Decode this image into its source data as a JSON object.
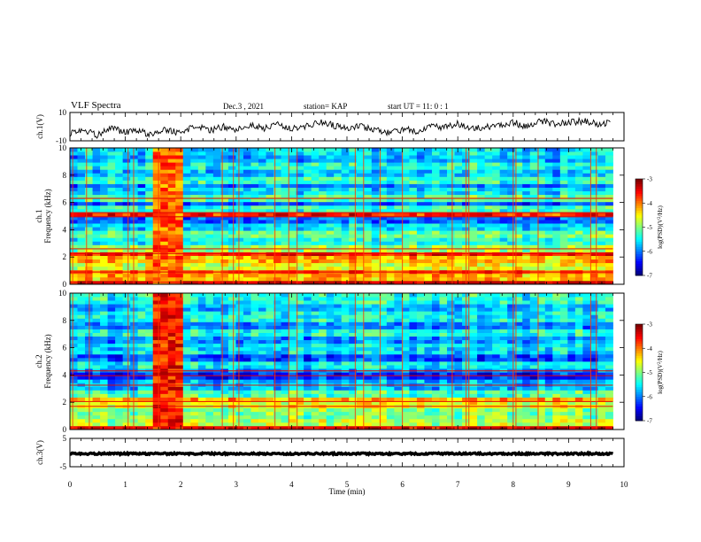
{
  "header": {
    "title": "VLF Spectra",
    "date": "Dec.3 , 2021",
    "station": "station= KAP",
    "start": "start UT = 11: 0 : 1"
  },
  "chart_data": [
    {
      "type": "line",
      "name": "waveform-ch1",
      "ylabel": "ch.1(V)",
      "ylim": [
        -10,
        10
      ],
      "yticks": [
        -10,
        10
      ],
      "xlim": [
        0,
        10
      ],
      "trace_x": [
        0,
        0.25,
        0.5,
        0.75,
        1,
        1.25,
        1.5,
        1.75,
        2,
        2.25,
        2.5,
        2.75,
        3,
        3.25,
        3.5,
        3.75,
        4,
        4.25,
        4.5,
        4.75,
        5,
        5.25,
        5.5,
        5.75,
        6,
        6.25,
        6.5,
        6.75,
        7,
        7.25,
        7.5,
        7.75,
        8,
        8.25,
        8.5,
        8.75,
        9,
        9.25,
        9.5,
        9.75
      ],
      "trace_y": [
        -5,
        -2,
        -6,
        -1,
        -4,
        -3,
        -6,
        -2,
        -5,
        1,
        -3,
        0,
        -2,
        1,
        -1,
        2,
        -1,
        0,
        3,
        1,
        -1,
        0,
        -2,
        -4,
        -2,
        -3,
        0,
        -1,
        2,
        -2,
        0,
        1,
        3,
        0,
        4,
        2,
        3,
        4,
        2,
        3
      ]
    },
    {
      "type": "heatmap",
      "name": "spectrogram-ch1",
      "ylabel_line1": "ch.1",
      "ylabel_line2": "Frequency (kHz)",
      "ylim": [
        0,
        10
      ],
      "yticks": [
        0,
        2,
        4,
        6,
        8,
        10
      ],
      "xlim": [
        0,
        9.8
      ],
      "colorbar": {
        "label": "log(PSD)(V^2/Hz)",
        "range": [
          -7,
          -3
        ],
        "ticks": [
          -7,
          -6,
          -5,
          -4,
          -3
        ]
      },
      "bands": [
        {
          "lo": 0.0,
          "hi": 0.3,
          "v": -3.2
        },
        {
          "lo": 0.3,
          "hi": 0.8,
          "v": -4.2
        },
        {
          "lo": 0.8,
          "hi": 1.0,
          "v": -3.8
        },
        {
          "lo": 1.0,
          "hi": 1.6,
          "v": -4.6
        },
        {
          "lo": 1.6,
          "hi": 2.1,
          "v": -4.2
        },
        {
          "lo": 2.1,
          "hi": 2.4,
          "v": -3.6
        },
        {
          "lo": 2.4,
          "hi": 3.0,
          "v": -4.9
        },
        {
          "lo": 3.0,
          "hi": 3.3,
          "v": -5.4
        },
        {
          "lo": 3.3,
          "hi": 4.0,
          "v": -5.1
        },
        {
          "lo": 4.0,
          "hi": 4.6,
          "v": -5.6
        },
        {
          "lo": 4.6,
          "hi": 4.9,
          "v": -6.1
        },
        {
          "lo": 4.9,
          "hi": 5.3,
          "v": -3.6
        },
        {
          "lo": 5.3,
          "hi": 5.7,
          "v": -5.3
        },
        {
          "lo": 5.7,
          "hi": 6.0,
          "v": -6.2
        },
        {
          "lo": 6.0,
          "hi": 6.5,
          "v": -5.2
        },
        {
          "lo": 6.5,
          "hi": 7.0,
          "v": -5.6
        },
        {
          "lo": 7.0,
          "hi": 7.4,
          "v": -6.0
        },
        {
          "lo": 7.4,
          "hi": 8.0,
          "v": -5.3
        },
        {
          "lo": 8.0,
          "hi": 8.5,
          "v": -5.7
        },
        {
          "lo": 8.5,
          "hi": 9.0,
          "v": -5.4
        },
        {
          "lo": 9.0,
          "hi": 9.5,
          "v": -5.8
        },
        {
          "lo": 9.5,
          "hi": 10.0,
          "v": -5.6
        }
      ],
      "lines": [
        0.15,
        0.9,
        2.25,
        2.6,
        4.95,
        5.25,
        6.3
      ],
      "bursts": [
        {
          "t0": 1.45,
          "t1": 2.05,
          "v": -3.9
        }
      ],
      "vlines": [
        0.05,
        0.3,
        1.05,
        1.15,
        1.6,
        2.75,
        2.95,
        3.05,
        3.7,
        3.95,
        4.1,
        5.15,
        5.3,
        5.6,
        6.0,
        6.9,
        7.15,
        7.2,
        8.0,
        8.05,
        8.45,
        9.4,
        9.5
      ]
    },
    {
      "type": "heatmap",
      "name": "spectrogram-ch2",
      "ylabel_line1": "ch.2",
      "ylabel_line2": "Frequency (kHz)",
      "ylim": [
        0,
        10
      ],
      "yticks": [
        0,
        2,
        4,
        6,
        8,
        10
      ],
      "xlim": [
        0,
        9.8
      ],
      "colorbar": {
        "label": "log(PSD)(V^2/Hz)",
        "range": [
          -7,
          -3
        ],
        "ticks": [
          -7,
          -6,
          -5,
          -4,
          -3
        ]
      },
      "bands": [
        {
          "lo": 0.0,
          "hi": 0.3,
          "v": -3.4
        },
        {
          "lo": 0.3,
          "hi": 0.8,
          "v": -4.8
        },
        {
          "lo": 0.8,
          "hi": 1.6,
          "v": -5.0
        },
        {
          "lo": 1.6,
          "hi": 2.0,
          "v": -4.6
        },
        {
          "lo": 2.0,
          "hi": 2.3,
          "v": -4.2
        },
        {
          "lo": 2.3,
          "hi": 3.0,
          "v": -5.2
        },
        {
          "lo": 3.0,
          "hi": 3.6,
          "v": -5.8
        },
        {
          "lo": 3.6,
          "hi": 4.1,
          "v": -6.4
        },
        {
          "lo": 4.1,
          "hi": 4.5,
          "v": -5.9
        },
        {
          "lo": 4.5,
          "hi": 5.0,
          "v": -5.5
        },
        {
          "lo": 5.0,
          "hi": 5.6,
          "v": -6.2
        },
        {
          "lo": 5.6,
          "hi": 6.2,
          "v": -5.6
        },
        {
          "lo": 6.2,
          "hi": 6.8,
          "v": -5.9
        },
        {
          "lo": 6.8,
          "hi": 7.4,
          "v": -5.4
        },
        {
          "lo": 7.4,
          "hi": 8.0,
          "v": -6.0
        },
        {
          "lo": 8.0,
          "hi": 8.6,
          "v": -5.5
        },
        {
          "lo": 8.6,
          "hi": 9.2,
          "v": -5.8
        },
        {
          "lo": 9.2,
          "hi": 10.0,
          "v": -5.4
        }
      ],
      "lines": [
        0.2,
        1.7,
        2.05,
        3.25,
        3.95,
        4.3
      ],
      "bursts": [
        {
          "t0": 1.45,
          "t1": 2.05,
          "v": -3.6
        }
      ],
      "vlines": [
        0.05,
        0.35,
        1.05,
        1.15,
        1.6,
        2.75,
        2.95,
        3.05,
        3.7,
        3.95,
        4.1,
        5.15,
        5.3,
        5.6,
        6.0,
        6.9,
        7.15,
        7.2,
        8.0,
        8.05,
        8.45,
        9.4,
        9.5
      ]
    },
    {
      "type": "line",
      "name": "waveform-ch3",
      "ylabel": "ch.3(V)",
      "ylim": [
        -5,
        5
      ],
      "yticks": [
        -5,
        5
      ],
      "xlim": [
        0,
        10
      ],
      "trace_x": [
        0,
        9.8
      ],
      "trace_y": [
        -0.4,
        -0.4
      ],
      "xlabel": "Time (min)",
      "xticks": [
        0,
        1,
        2,
        3,
        4,
        5,
        6,
        7,
        8,
        9,
        10
      ]
    }
  ]
}
